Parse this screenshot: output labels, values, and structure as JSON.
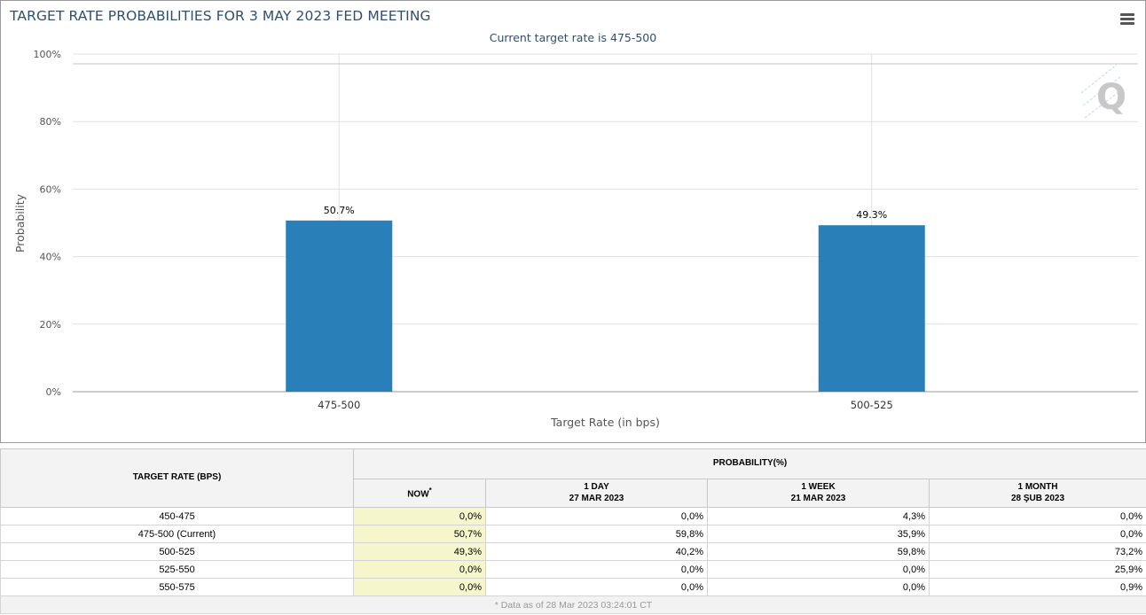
{
  "chart": {
    "title": "TARGET RATE PROBABILITIES FOR 3 MAY 2023 FED MEETING",
    "subtitle": "Current target rate is 475-500",
    "logo_text": "Q",
    "menu_icon": "hamburger-menu-icon"
  },
  "chart_data": {
    "type": "bar",
    "categories": [
      "475-500",
      "500-525"
    ],
    "values": [
      50.7,
      49.3
    ],
    "data_labels": [
      "50.7%",
      "49.3%"
    ],
    "title": "TARGET RATE PROBABILITIES FOR 3 MAY 2023 FED MEETING",
    "subtitle": "Current target rate is 475-500",
    "xlabel": "Target Rate (in bps)",
    "ylabel": "Probability",
    "ylim": [
      0,
      100
    ],
    "yticks": [
      "0%",
      "20%",
      "40%",
      "60%",
      "80%",
      "100%"
    ],
    "bar_color": "#2980b9",
    "grid": true,
    "legend": "none"
  },
  "table": {
    "header_rate": "TARGET RATE (BPS)",
    "header_prob": "PROBABILITY(%)",
    "columns": [
      {
        "line1": "NOW",
        "line2": "",
        "sup": "*"
      },
      {
        "line1": "1 DAY",
        "line2": "27 MAR 2023",
        "sup": ""
      },
      {
        "line1": "1 WEEK",
        "line2": "21 MAR 2023",
        "sup": ""
      },
      {
        "line1": "1 MONTH",
        "line2": "28 ŞUB 2023",
        "sup": ""
      }
    ],
    "rows": [
      {
        "rate": "450-475",
        "values": [
          "0,0%",
          "0,0%",
          "4,3%",
          "0,0%"
        ]
      },
      {
        "rate": "475-500 (Current)",
        "values": [
          "50,7%",
          "59,8%",
          "35,9%",
          "0,0%"
        ]
      },
      {
        "rate": "500-525",
        "values": [
          "49,3%",
          "40,2%",
          "59,8%",
          "73,2%"
        ]
      },
      {
        "rate": "525-550",
        "values": [
          "0,0%",
          "0,0%",
          "0,0%",
          "25,9%"
        ]
      },
      {
        "rate": "550-575",
        "values": [
          "0,0%",
          "0,0%",
          "0,0%",
          "0,9%"
        ]
      }
    ],
    "footer": "* Data as of 28 Mar 2023 03:24:01 CT",
    "now_highlight_color": "#f6f6cc"
  }
}
